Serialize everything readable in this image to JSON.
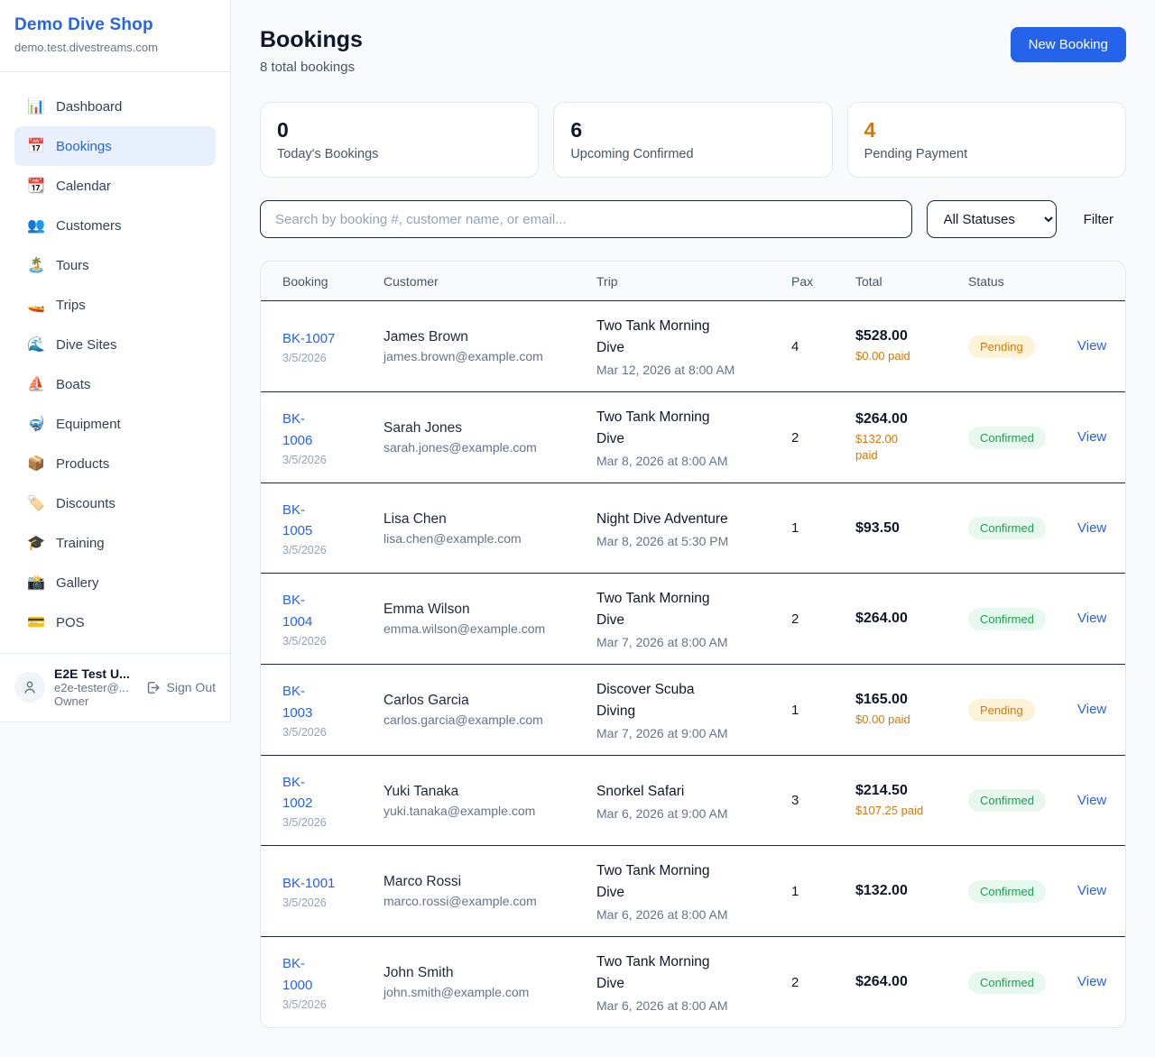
{
  "colors": {
    "accent": "#2563eb",
    "orange": "#d97706",
    "green": "#16a34a",
    "pending_bg": "#fdf3d8",
    "confirmed_bg": "#e7f8ee"
  },
  "sidebar": {
    "shop_name": "Demo Dive Shop",
    "domain": "demo.test.divestreams.com",
    "items": [
      {
        "icon": "📊",
        "icon_name": "dashboard-icon",
        "label": "Dashboard",
        "active": false
      },
      {
        "icon": "📅",
        "icon_name": "bookings-icon",
        "label": "Bookings",
        "active": true
      },
      {
        "icon": "📆",
        "icon_name": "calendar-icon",
        "label": "Calendar",
        "active": false
      },
      {
        "icon": "👥",
        "icon_name": "customers-icon",
        "label": "Customers",
        "active": false
      },
      {
        "icon": "🏝️",
        "icon_name": "tours-icon",
        "label": "Tours",
        "active": false
      },
      {
        "icon": "🚤",
        "icon_name": "trips-icon",
        "label": "Trips",
        "active": false
      },
      {
        "icon": "🌊",
        "icon_name": "dive-sites-icon",
        "label": "Dive Sites",
        "active": false
      },
      {
        "icon": "⛵",
        "icon_name": "boats-icon",
        "label": "Boats",
        "active": false
      },
      {
        "icon": "🤿",
        "icon_name": "equipment-icon",
        "label": "Equipment",
        "active": false
      },
      {
        "icon": "📦",
        "icon_name": "products-icon",
        "label": "Products",
        "active": false
      },
      {
        "icon": "🏷️",
        "icon_name": "discounts-icon",
        "label": "Discounts",
        "active": false
      },
      {
        "icon": "🎓",
        "icon_name": "training-icon",
        "label": "Training",
        "active": false
      },
      {
        "icon": "📸",
        "icon_name": "gallery-icon",
        "label": "Gallery",
        "active": false
      },
      {
        "icon": "💳",
        "icon_name": "pos-icon",
        "label": "POS",
        "active": false
      }
    ],
    "user": {
      "name": "E2E Test U...",
      "email": "e2e-tester@...",
      "role": "Owner",
      "sign_out_label": "Sign Out"
    }
  },
  "header": {
    "title": "Bookings",
    "subtitle": "8 total bookings",
    "new_booking_label": "New Booking"
  },
  "stats": [
    {
      "value": "0",
      "label": "Today's Bookings",
      "highlight": false
    },
    {
      "value": "6",
      "label": "Upcoming Confirmed",
      "highlight": false
    },
    {
      "value": "4",
      "label": "Pending Payment",
      "highlight": true
    }
  ],
  "filters": {
    "search_placeholder": "Search by booking #, customer name, or email...",
    "status_selected": "All Statuses",
    "filter_label": "Filter"
  },
  "table": {
    "columns": [
      "Booking",
      "Customer",
      "Trip",
      "Pax",
      "Total",
      "Status"
    ],
    "view_label": "View",
    "rows": [
      {
        "id": "BK-1007",
        "date": "3/5/2026",
        "customer": "James Brown",
        "email": "james.brown@example.com",
        "trip": "Two Tank Morning\nDive",
        "when": "Mar 12, 2026 at 8:00 AM",
        "pax": "4",
        "total": "$528.00",
        "paid": "$0.00 paid",
        "status": "Pending"
      },
      {
        "id": "BK-\n1006",
        "date": "3/5/2026",
        "customer": "Sarah Jones",
        "email": "sarah.jones@example.com",
        "trip": "Two Tank Morning\nDive",
        "when": "Mar 8, 2026 at 8:00 AM",
        "pax": "2",
        "total": "$264.00",
        "paid": "$132.00\npaid",
        "status": "Confirmed"
      },
      {
        "id": "BK-\n1005",
        "date": "3/5/2026",
        "customer": "Lisa Chen",
        "email": "lisa.chen@example.com",
        "trip": "Night Dive Adventure",
        "when": "Mar 8, 2026 at 5:30 PM",
        "pax": "1",
        "total": "$93.50",
        "paid": "",
        "status": "Confirmed"
      },
      {
        "id": "BK-\n1004",
        "date": "3/5/2026",
        "customer": "Emma Wilson",
        "email": "emma.wilson@example.com",
        "trip": "Two Tank Morning\nDive",
        "when": "Mar 7, 2026 at 8:00 AM",
        "pax": "2",
        "total": "$264.00",
        "paid": "",
        "status": "Confirmed"
      },
      {
        "id": "BK-\n1003",
        "date": "3/5/2026",
        "customer": "Carlos Garcia",
        "email": "carlos.garcia@example.com",
        "trip": "Discover Scuba\nDiving",
        "when": "Mar 7, 2026 at 9:00 AM",
        "pax": "1",
        "total": "$165.00",
        "paid": "$0.00 paid",
        "status": "Pending"
      },
      {
        "id": "BK-\n1002",
        "date": "3/5/2026",
        "customer": "Yuki Tanaka",
        "email": "yuki.tanaka@example.com",
        "trip": "Snorkel Safari",
        "when": "Mar 6, 2026 at 9:00 AM",
        "pax": "3",
        "total": "$214.50",
        "paid": "$107.25 paid",
        "status": "Confirmed"
      },
      {
        "id": "BK-1001",
        "date": "3/5/2026",
        "customer": "Marco Rossi",
        "email": "marco.rossi@example.com",
        "trip": "Two Tank Morning\nDive",
        "when": "Mar 6, 2026 at 8:00 AM",
        "pax": "1",
        "total": "$132.00",
        "paid": "",
        "status": "Confirmed"
      },
      {
        "id": "BK-\n1000",
        "date": "3/5/2026",
        "customer": "John Smith",
        "email": "john.smith@example.com",
        "trip": "Two Tank Morning\nDive",
        "when": "Mar 6, 2026 at 8:00 AM",
        "pax": "2",
        "total": "$264.00",
        "paid": "",
        "status": "Confirmed"
      }
    ]
  }
}
